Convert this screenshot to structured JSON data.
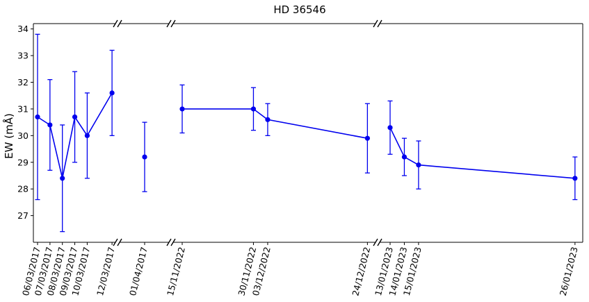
{
  "chart_data": {
    "type": "scatter",
    "title": "HD 36546",
    "xlabel": "",
    "ylabel": "EW (mÅ)",
    "ylim": [
      26,
      34.2
    ],
    "yticks": [
      27,
      28,
      29,
      30,
      31,
      32,
      33,
      34
    ],
    "grid": false,
    "axis_breaks_after": [
      "12/03/2017",
      "01/04/2017",
      "24/12/2022"
    ],
    "series": [
      {
        "color": "#0000ee",
        "segments": [
          {
            "connected": true,
            "points": [
              {
                "x": "06/03/2017",
                "y": 30.7,
                "err": 3.1
              },
              {
                "x": "07/03/2017",
                "y": 30.4,
                "err": 1.7
              },
              {
                "x": "08/03/2017",
                "y": 28.4,
                "err": 2.0
              },
              {
                "x": "09/03/2017",
                "y": 30.7,
                "err": 1.7
              },
              {
                "x": "10/03/2017",
                "y": 30.0,
                "err": 1.6
              },
              {
                "x": "12/03/2017",
                "y": 31.6,
                "err": 1.6
              }
            ]
          },
          {
            "connected": false,
            "points": [
              {
                "x": "01/04/2017",
                "y": 29.2,
                "err": 1.3
              }
            ]
          },
          {
            "connected": true,
            "points": [
              {
                "x": "15/11/2022",
                "y": 31.0,
                "err": 0.9
              },
              {
                "x": "30/11/2022",
                "y": 31.0,
                "err": 0.8
              },
              {
                "x": "03/12/2022",
                "y": 30.6,
                "err": 0.6
              },
              {
                "x": "24/12/2022",
                "y": 29.9,
                "err": 1.3
              }
            ]
          },
          {
            "connected": true,
            "points": [
              {
                "x": "13/01/2023",
                "y": 30.3,
                "err": 1.0
              },
              {
                "x": "14/01/2023",
                "y": 29.2,
                "err": 0.7
              },
              {
                "x": "15/01/2023",
                "y": 28.9,
                "err": 0.9
              },
              {
                "x": "26/01/2023",
                "y": 28.4,
                "err": 0.8
              }
            ]
          }
        ]
      }
    ]
  }
}
